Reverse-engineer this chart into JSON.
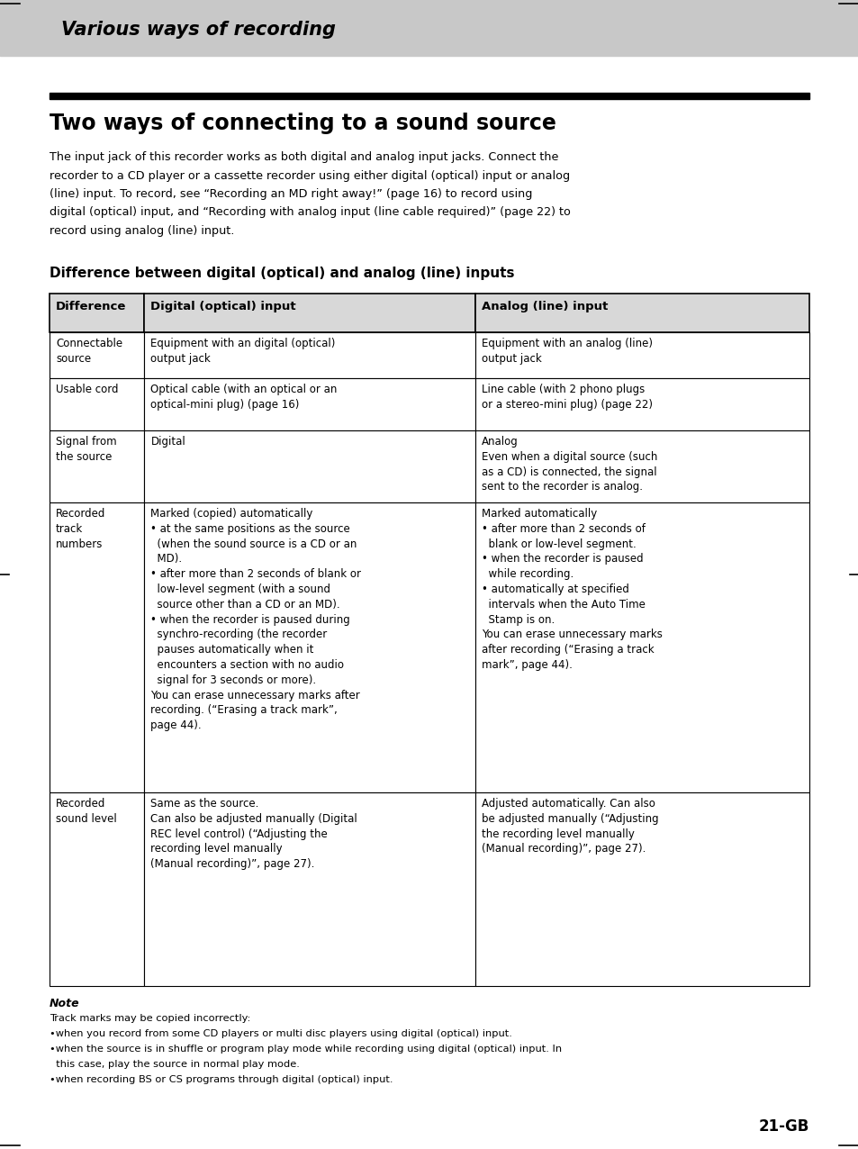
{
  "page_bg": "#ffffff",
  "header_bg": "#c8c8c8",
  "header_text": "Various ways of recording",
  "section_title": "Two ways of connecting to a sound source",
  "black_bar_color": "#000000",
  "intro_lines": [
    "The input jack of this recorder works as both digital and analog input jacks. Connect the",
    "recorder to a CD player or a cassette recorder using either digital (optical) input or analog",
    "(line) input. To record, see “Recording an MD right away!” (page 16) to record using",
    "digital (optical) input, and “Recording with analog input (line cable required)” (page 22) to",
    "record using analog (line) input."
  ],
  "table_title": "Difference between digital (optical) and analog (line) inputs",
  "table_header": [
    "Difference",
    "Digital (optical) input",
    "Analog (line) input"
  ],
  "table_rows": [
    [
      "Connectable\nsource",
      "Equipment with an digital (optical)\noutput jack",
      "Equipment with an analog (line)\noutput jack"
    ],
    [
      "Usable cord",
      "Optical cable (with an optical or an\noptical-mini plug) (page 16)",
      "Line cable (with 2 phono plugs\nor a stereo-mini plug) (page 22)"
    ],
    [
      "Signal from\nthe source",
      "Digital",
      "Analog\nEven when a digital source (such\nas a CD) is connected, the signal\nsent to the recorder is analog."
    ],
    [
      "Recorded\ntrack\nnumbers",
      "Marked (copied) automatically\n• at the same positions as the source\n  (when the sound source is a CD or an\n  MD).\n• after more than 2 seconds of blank or\n  low-level segment (with a sound\n  source other than a CD or an MD).\n• when the recorder is paused during\n  synchro-recording (the recorder\n  pauses automatically when it\n  encounters a section with no audio\n  signal for 3 seconds or more).\nYou can erase unnecessary marks after\nrecording. (“Erasing a track mark”,\npage 44).",
      "Marked automatically\n• after more than 2 seconds of\n  blank or low-level segment.\n• when the recorder is paused\n  while recording.\n• automatically at specified\n  intervals when the Auto Time\n  Stamp is on.\nYou can erase unnecessary marks\nafter recording (“Erasing a track\nmark”, page 44)."
    ],
    [
      "Recorded\nsound level",
      "Same as the source.\nCan also be adjusted manually (Digital\nREC level control) (“Adjusting the\nrecording level manually\n(Manual recording)”, page 27).",
      "Adjusted automatically. Can also\nbe adjusted manually (“Adjusting\nthe recording level manually\n(Manual recording)”, page 27)."
    ]
  ],
  "note_title": "Note",
  "note_lines": [
    "Track marks may be copied incorrectly:",
    "•when you record from some CD players or multi disc players using digital (optical) input.",
    "•when the source is in shuffle or program play mode while recording using digital (optical) input. In",
    "  this case, play the source in normal play mode.",
    "•when recording BS or CS programs through digital (optical) input."
  ],
  "page_number": "21-GB"
}
